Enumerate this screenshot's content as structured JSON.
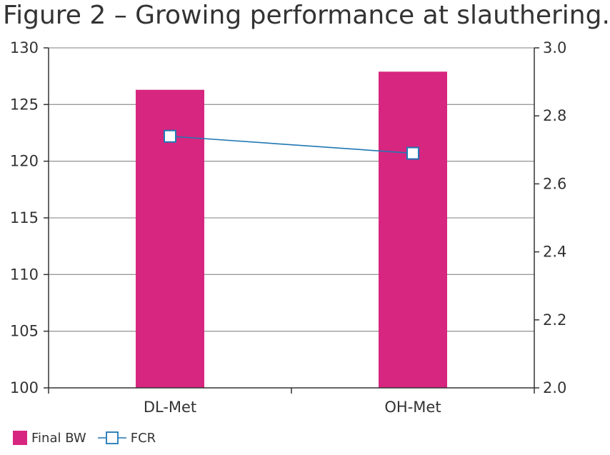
{
  "chart_data": {
    "type": "bar",
    "title": "Figure 2 – Growing performance at slauthering.",
    "categories": [
      "DL-Met",
      "OH-Met"
    ],
    "series": [
      {
        "name": "Final BW",
        "type": "bar",
        "axis": "left",
        "color": "#d7267f",
        "values": [
          126.3,
          127.9
        ]
      },
      {
        "name": "FCR",
        "type": "line",
        "marker": "square",
        "axis": "right",
        "color": "#1f77b4",
        "values": [
          2.74,
          2.69
        ]
      }
    ],
    "y_left": {
      "ylim": [
        100,
        130
      ],
      "ticks": [
        "100",
        "105",
        "110",
        "115",
        "120",
        "125",
        "130"
      ]
    },
    "y_right": {
      "ylim": [
        2.0,
        3.0
      ],
      "ticks": [
        "2.0",
        "2.2",
        "2.4",
        "2.6",
        "2.8",
        "3.0"
      ]
    },
    "grid": true,
    "legend": "bottom-left"
  }
}
